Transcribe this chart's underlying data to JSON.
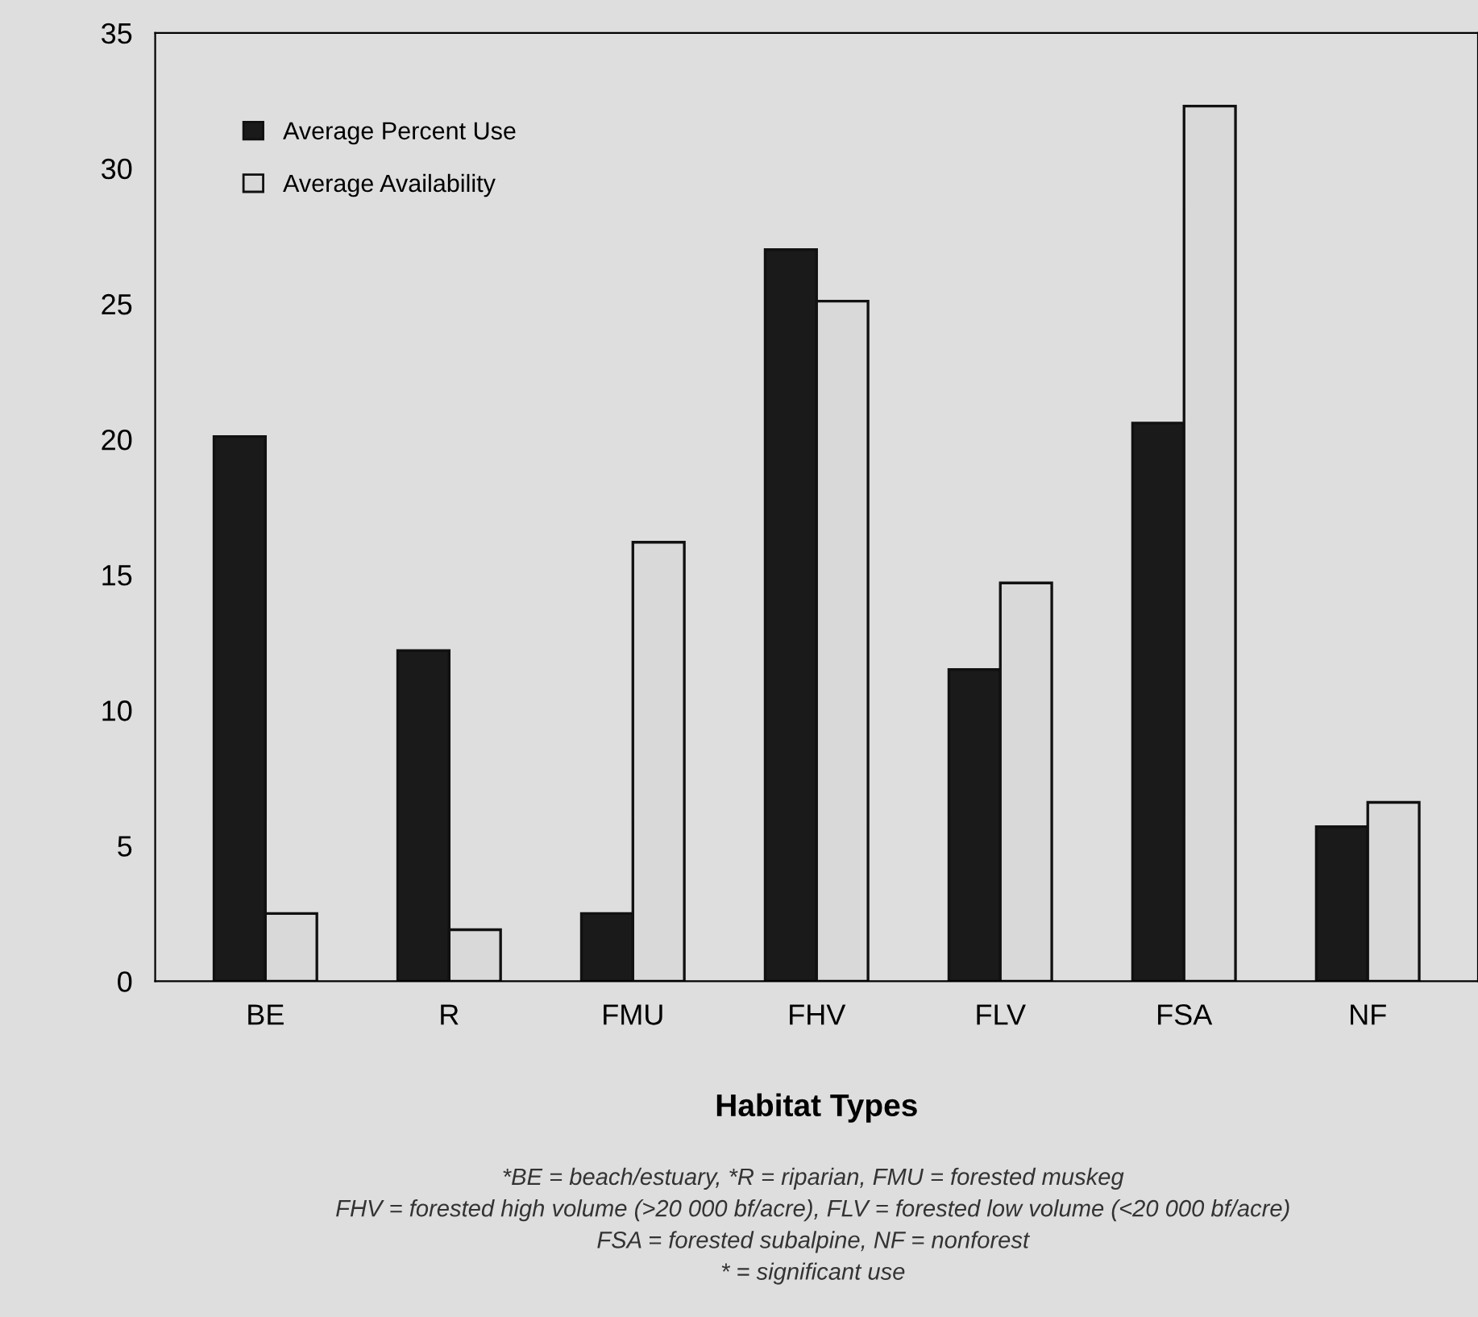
{
  "chart_data": {
    "type": "bar",
    "xlabel": "Habitat Types",
    "categories": [
      "BE",
      "R",
      "FMU",
      "FHV",
      "FLV",
      "FSA",
      "NF"
    ],
    "series": [
      {
        "name": "Average Percent Use",
        "color": "#1a1a1a",
        "values": [
          20.1,
          12.2,
          2.5,
          27.0,
          11.5,
          20.6,
          5.7
        ]
      },
      {
        "name": "Average Availability",
        "color": "#d9d9d9",
        "values": [
          2.5,
          1.9,
          16.2,
          25.1,
          14.7,
          32.3,
          6.6
        ]
      }
    ],
    "ylim": [
      0,
      35
    ],
    "yticks": [
      0,
      5,
      10,
      15,
      20,
      25,
      30,
      35
    ],
    "grid": false,
    "legend": "top left",
    "annotations": [
      "*BE = beach/estuary, *R = riparian, FMU = forested muskeg",
      "FHV = forested high volume (>20 000 bf/acre), FLV = forested low volume (<20 000 bf/acre)",
      "FSA = forested subalpine, NF = nonforest",
      "* = significant use"
    ]
  }
}
